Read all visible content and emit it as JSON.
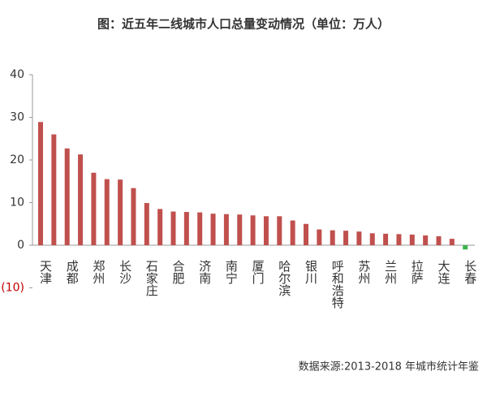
{
  "chart_data": {
    "type": "bar",
    "title": "图：近五年二线城市人口总量变动情况（单位：万人）",
    "categories": [
      "天津",
      null,
      "成都",
      null,
      "郑州",
      null,
      "长沙",
      null,
      "石家庄",
      null,
      "合肥",
      null,
      "济南",
      null,
      "南宁",
      null,
      "厦门",
      null,
      "哈尔滨",
      null,
      "银川",
      null,
      "呼和浩特",
      null,
      "苏州",
      null,
      "兰州",
      null,
      "拉萨",
      null,
      "大连",
      null,
      "长春"
    ],
    "values": [
      28.9,
      26,
      22.7,
      21.3,
      17,
      15.5,
      15.4,
      13.4,
      9.9,
      8.5,
      7.9,
      7.8,
      7.7,
      7.4,
      7.3,
      7.2,
      7.0,
      6.8,
      6.8,
      5.8,
      5.0,
      3.7,
      3.5,
      3.4,
      3.2,
      2.8,
      2.7,
      2.6,
      2.5,
      2.3,
      2.1,
      1.5,
      -1.0
    ],
    "color": "#c0504d",
    "negative_color": "#3cb44b",
    "negative_tick_color": "#c00000",
    "ylim": [
      -10,
      40
    ],
    "yticks": [
      {
        "value": -10,
        "label": "(10)"
      },
      0,
      10,
      20,
      30,
      40
    ],
    "source": "数据来源:2013-2018 年城市统计年鉴"
  }
}
